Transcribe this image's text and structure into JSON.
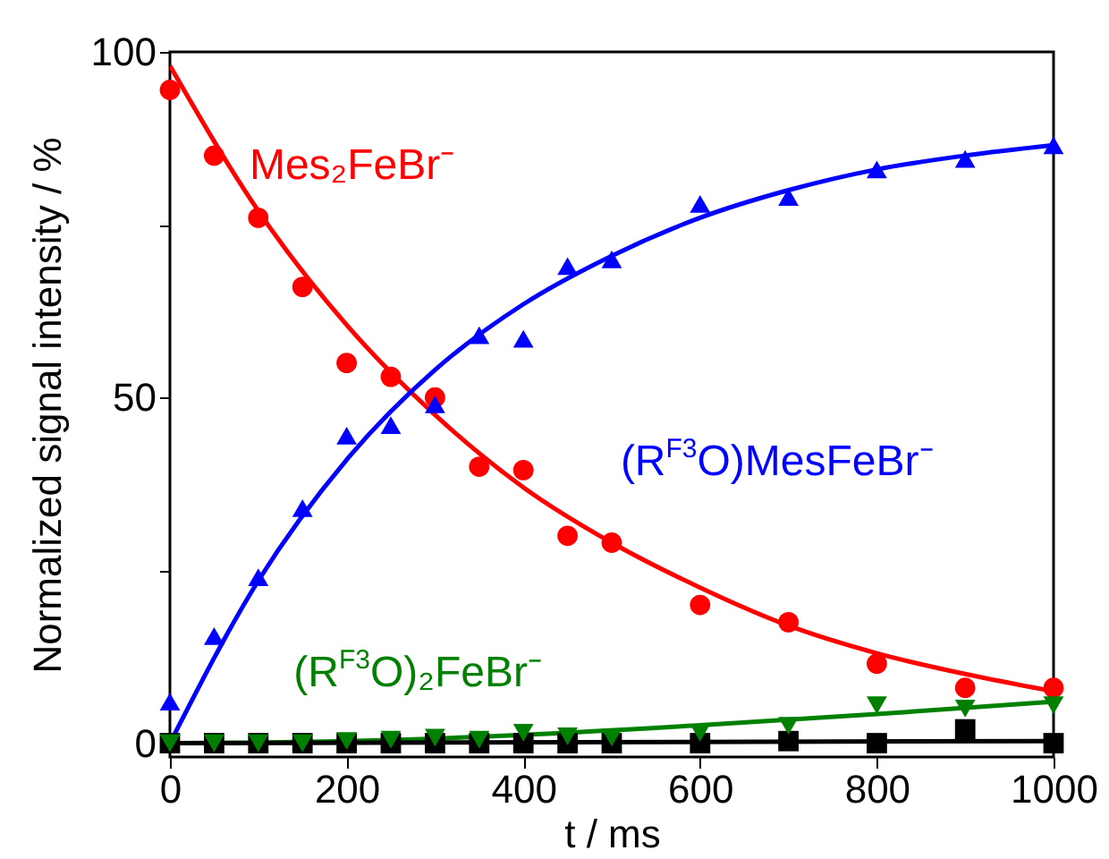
{
  "chart_data": {
    "type": "scatter",
    "xlabel": "t / ms",
    "ylabel": "Normalized signal intensity / %",
    "xlim": [
      0,
      1000
    ],
    "ylim": [
      -2,
      100
    ],
    "xticks": [
      0,
      200,
      400,
      600,
      800,
      1000
    ],
    "yticks": [
      0,
      {
        "value": 25,
        "label": null
      },
      50,
      {
        "value": 75,
        "label": null
      },
      100
    ],
    "grid": false,
    "series": [
      {
        "type": "line",
        "color": "#ff0000",
        "x": [
          0,
          100,
          200,
          300,
          400,
          500,
          600,
          700,
          800,
          900,
          1000
        ],
        "values": [
          98,
          77,
          60.5,
          47.5,
          37,
          29,
          22.5,
          17,
          13,
          10,
          7.5
        ]
      },
      {
        "type": "line",
        "color": "#0000ff",
        "x": [
          0,
          100,
          200,
          300,
          400,
          500,
          600,
          700,
          800,
          900,
          1000
        ],
        "values": [
          0,
          23.5,
          41,
          54,
          63.5,
          70.5,
          76,
          80,
          83,
          85,
          86.5
        ]
      },
      {
        "type": "line",
        "color": "#008000",
        "x": [
          0,
          200,
          400,
          600,
          800,
          1000
        ],
        "values": [
          0,
          0.3,
          1.2,
          2.6,
          4.2,
          6
        ]
      },
      {
        "type": "line",
        "color": "#000000",
        "x": [
          0,
          1000
        ],
        "values": [
          0,
          0.3
        ]
      },
      {
        "name": "Mes₂FeBr⁻",
        "marker": "circle",
        "color": "#ff0000",
        "x": [
          0,
          50,
          100,
          150,
          200,
          250,
          300,
          350,
          400,
          450,
          500,
          600,
          700,
          800,
          900,
          1000
        ],
        "values": [
          94.5,
          85,
          76,
          66,
          55,
          53,
          50,
          40,
          39.5,
          30,
          29,
          20,
          17.5,
          11.5,
          8,
          8
        ]
      },
      {
        "name": "(R$^{F3}$O)MesFeBr⁻",
        "marker": "triangle",
        "color": "#0000ff",
        "x": [
          0,
          50,
          100,
          150,
          200,
          250,
          300,
          350,
          400,
          450,
          500,
          600,
          700,
          800,
          900,
          1000
        ],
        "values": [
          6,
          15.5,
          24,
          34,
          44.5,
          46,
          49,
          59,
          58.5,
          69,
          70,
          78,
          79,
          83,
          84.5,
          86.5
        ]
      },
      {
        "marker": "square",
        "color": "#000000",
        "x": [
          0,
          50,
          100,
          150,
          200,
          250,
          300,
          350,
          400,
          450,
          500,
          600,
          700,
          800,
          900,
          1000
        ],
        "values": [
          0,
          0,
          0,
          0,
          0,
          0,
          0,
          0,
          0,
          0,
          0,
          0,
          0.3,
          0,
          2,
          0
        ]
      },
      {
        "name": "(R$^{F3}$O)₂FeBr⁻",
        "marker": "triangle-down",
        "color": "#008000",
        "x": [
          0,
          50,
          100,
          150,
          200,
          250,
          300,
          350,
          400,
          450,
          500,
          600,
          700,
          800,
          900,
          1000
        ],
        "values": [
          0,
          0,
          0,
          0,
          0.3,
          0.5,
          0.8,
          0.5,
          1.5,
          1,
          0.8,
          1.5,
          2.5,
          5.5,
          5,
          5.5
        ]
      }
    ]
  }
}
